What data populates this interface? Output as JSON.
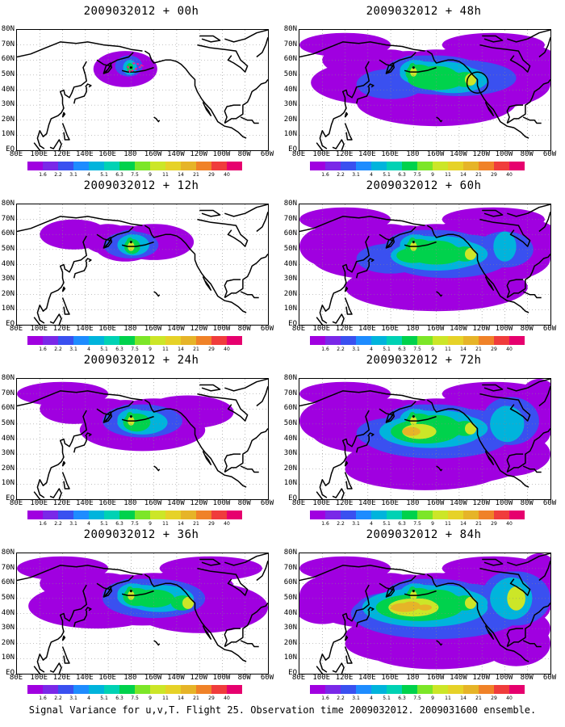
{
  "panels": [
    {
      "title": "2009032012 + 00h",
      "level": 0
    },
    {
      "title": "2009032012 + 48h",
      "level": 4
    },
    {
      "title": "2009032012 + 12h",
      "level": 1
    },
    {
      "title": "2009032012 + 60h",
      "level": 5
    },
    {
      "title": "2009032012 + 24h",
      "level": 2
    },
    {
      "title": "2009032012 + 72h",
      "level": 6
    },
    {
      "title": "2009032012 + 36h",
      "level": 3
    },
    {
      "title": "2009032012 + 84h",
      "level": 7
    }
  ],
  "lat_labels": [
    "80N",
    "70N",
    "60N",
    "50N",
    "40N",
    "30N",
    "20N",
    "10N",
    "EQ"
  ],
  "lon_labels": [
    "80E",
    "100E",
    "120E",
    "140E",
    "160E",
    "180",
    "160W",
    "140W",
    "120W",
    "100W",
    "80W",
    "60W"
  ],
  "colorbar": {
    "labels": [
      "1.6",
      "2.2",
      "3.1",
      "4",
      "5.1",
      "6.3",
      "7.5",
      "9",
      "11",
      "14",
      "21",
      "29",
      "40"
    ],
    "colors": [
      "#a000e0",
      "#7a28e8",
      "#3a50f0",
      "#1e8cff",
      "#00b4dc",
      "#00d2b4",
      "#00d24c",
      "#7ce628",
      "#cce628",
      "#e6d228",
      "#e6b428",
      "#f08228",
      "#f03c3c",
      "#e6006e"
    ]
  },
  "caption": "Signal Variance for u,v,T. Flight 25. Observation time 2009032012. 2009031600 ensemble."
}
